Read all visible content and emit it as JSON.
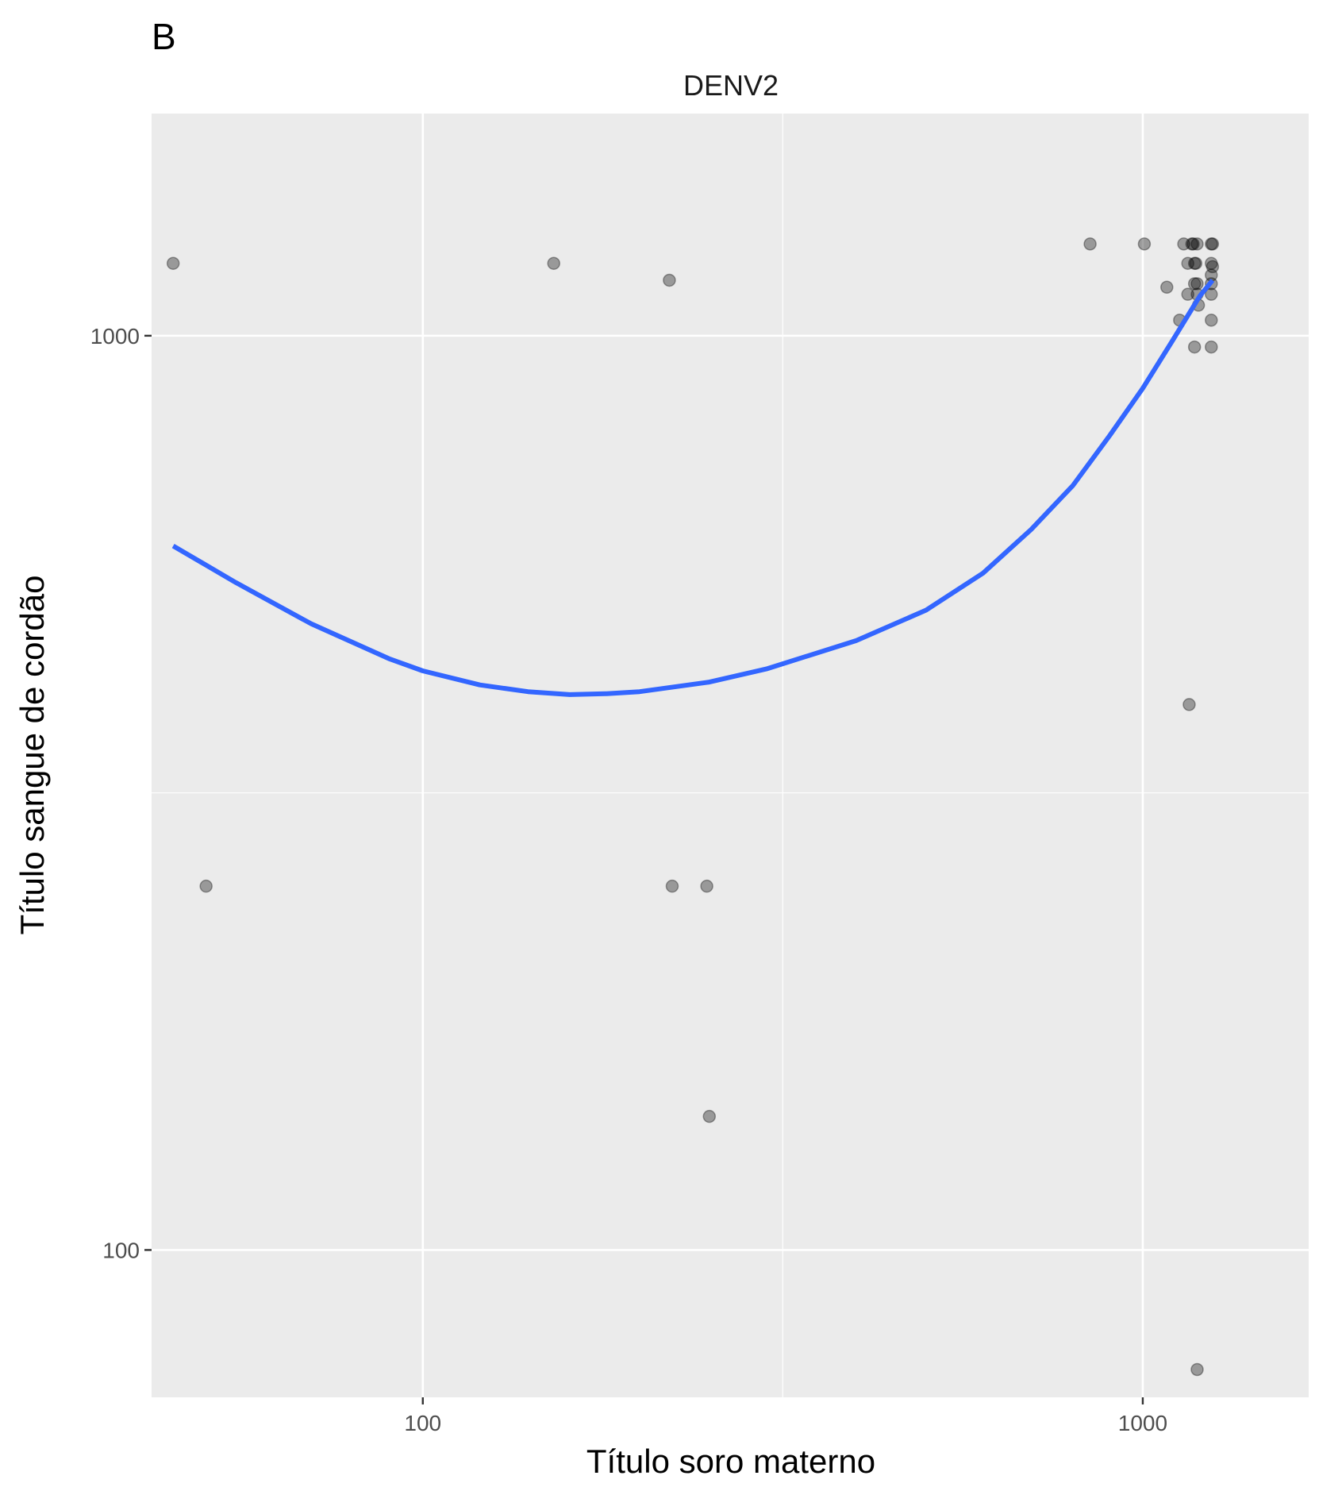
{
  "figure": {
    "panel_tag": "B"
  },
  "chart_data": {
    "type": "scatter",
    "title": "DENV2",
    "xlabel": "Título soro materno",
    "ylabel": "Título sangue de cordão",
    "x_scale": "log10",
    "y_scale": "log10",
    "xlim": [
      42,
      1700
    ],
    "ylim": [
      69,
      1750
    ],
    "x_ticks": [
      {
        "value": 100,
        "label": "100"
      },
      {
        "value": 1000,
        "label": "1000"
      }
    ],
    "y_ticks": [
      {
        "value": 100,
        "label": "100"
      },
      {
        "value": 1000,
        "label": "1000"
      }
    ],
    "x_minor_gridlines": [
      31.6,
      316.2
    ],
    "y_minor_gridlines": [
      31.6,
      316.2
    ],
    "grid": true,
    "background_color": "#ebebeb",
    "grid_color": "#ffffff",
    "point_color": "#000000",
    "point_alpha": 0.35,
    "series": [
      {
        "points": [
          {
            "x": 45,
            "y": 1200
          },
          {
            "x": 50,
            "y": 250
          },
          {
            "x": 152,
            "y": 1200
          },
          {
            "x": 220,
            "y": 1150
          },
          {
            "x": 222,
            "y": 250
          },
          {
            "x": 248,
            "y": 250
          },
          {
            "x": 250,
            "y": 140
          },
          {
            "x": 845,
            "y": 1260
          },
          {
            "x": 1005,
            "y": 1260
          },
          {
            "x": 1080,
            "y": 1130
          },
          {
            "x": 1125,
            "y": 1040
          },
          {
            "x": 1140,
            "y": 1260
          },
          {
            "x": 1155,
            "y": 1200
          },
          {
            "x": 1155,
            "y": 1110
          },
          {
            "x": 1160,
            "y": 395
          },
          {
            "x": 1170,
            "y": 1260
          },
          {
            "x": 1175,
            "y": 1260
          },
          {
            "x": 1180,
            "y": 1200
          },
          {
            "x": 1180,
            "y": 1140
          },
          {
            "x": 1180,
            "y": 972
          },
          {
            "x": 1185,
            "y": 1200
          },
          {
            "x": 1190,
            "y": 1260
          },
          {
            "x": 1190,
            "y": 1140
          },
          {
            "x": 1190,
            "y": 1110
          },
          {
            "x": 1195,
            "y": 1080
          },
          {
            "x": 1190,
            "y": 74
          },
          {
            "x": 1245,
            "y": 1260
          },
          {
            "x": 1245,
            "y": 1200
          },
          {
            "x": 1245,
            "y": 1165
          },
          {
            "x": 1245,
            "y": 1140
          },
          {
            "x": 1245,
            "y": 1110
          },
          {
            "x": 1245,
            "y": 1040
          },
          {
            "x": 1245,
            "y": 972
          },
          {
            "x": 1250,
            "y": 1260
          },
          {
            "x": 1250,
            "y": 1190
          }
        ]
      }
    ],
    "smooth": {
      "color": "#3366ff",
      "x": [
        45,
        55,
        70,
        90,
        100,
        120,
        140,
        160,
        180,
        200,
        250,
        300,
        400,
        500,
        600,
        700,
        800,
        900,
        1000,
        1100,
        1200,
        1250
      ],
      "y": [
        589,
        537,
        484,
        443,
        430,
        415,
        408,
        405,
        406,
        408,
        418,
        432,
        464,
        501,
        550,
        614,
        686,
        778,
        876,
        988,
        1105,
        1150
      ]
    }
  }
}
